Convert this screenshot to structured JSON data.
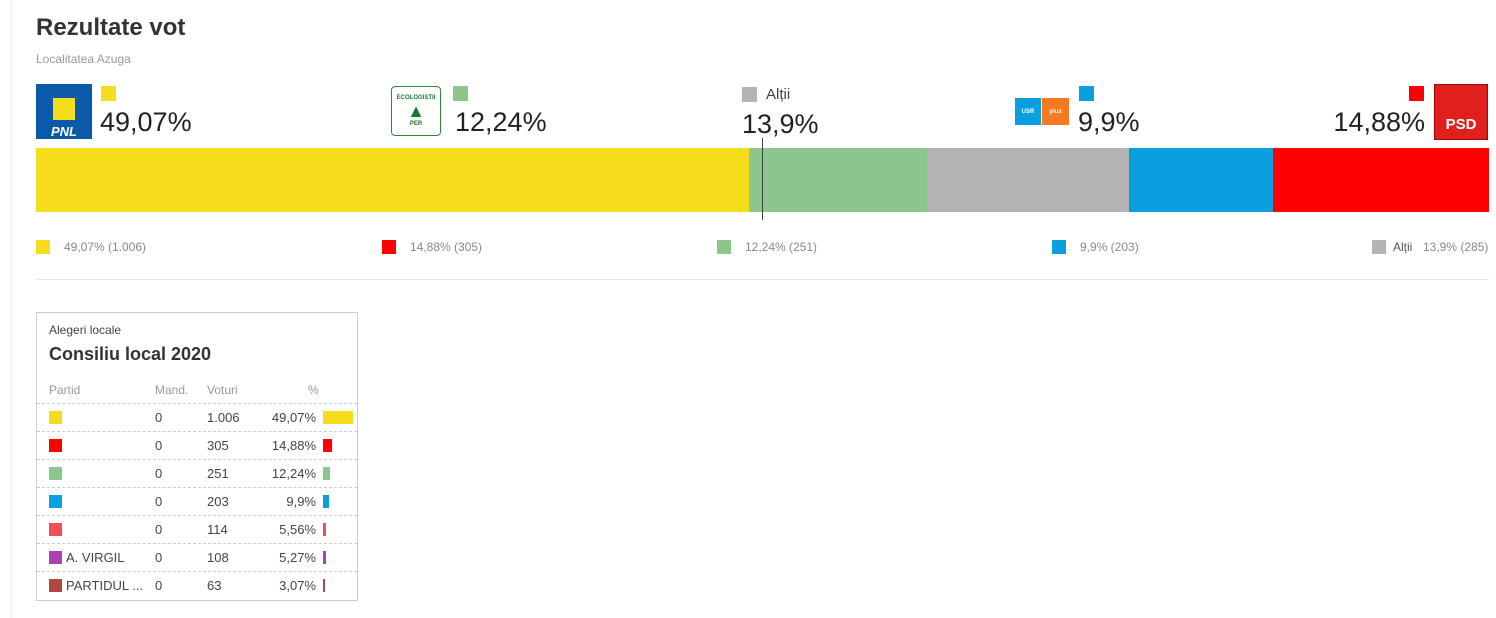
{
  "header": {
    "title": "Rezultate vot",
    "subtitle": "Localitatea Azuga"
  },
  "top": [
    {
      "logo": [
        "PNL"
      ],
      "color": "#f6dd1b",
      "label": "49,07%",
      "value": 49.07
    },
    {
      "logo": [
        "ECOLOGISTII",
        "PER"
      ],
      "color": "#8cc68c",
      "label": "12,24%",
      "value": 12.24
    },
    {
      "name": "Alții",
      "color": "#b4b4b4",
      "label": "13,9%",
      "value": 13.9
    },
    {
      "logo": [
        "USR",
        "plus"
      ],
      "color": "#0aa0e0",
      "label": "9,9%",
      "value": 9.9
    },
    {
      "logo": [
        "PSD"
      ],
      "color": "#ff0000",
      "label": "14,88%",
      "value": 14.88
    }
  ],
  "legend": [
    {
      "color": "#f6dd1b",
      "label": "49,07% (1.006)"
    },
    {
      "color": "#ff0000",
      "label": "14,88% (305)"
    },
    {
      "color": "#8cc68c",
      "label": "12,24% (251)"
    },
    {
      "color": "#0aa0e0",
      "label": "9,9% (203)"
    },
    {
      "color": "#b4b4b4",
      "name": "Alții",
      "label": "13,9% (285)"
    }
  ],
  "table": {
    "kicker": "Alegeri locale",
    "title": "Consiliu local 2020",
    "columns": [
      "Partid",
      "Mand.",
      "Voturi",
      "%"
    ],
    "rows": [
      {
        "color": "#f6dd1b",
        "name": "",
        "mand": "0",
        "votes": "1.006",
        "pct": "49,07%",
        "value": 49.07
      },
      {
        "color": "#ff0000",
        "name": "",
        "mand": "0",
        "votes": "305",
        "pct": "14,88%",
        "value": 14.88
      },
      {
        "color": "#8cc68c",
        "name": "",
        "mand": "0",
        "votes": "251",
        "pct": "12,24%",
        "value": 12.24
      },
      {
        "color": "#0aa0e0",
        "name": "",
        "mand": "0",
        "votes": "203",
        "pct": "9,9%",
        "value": 9.9
      },
      {
        "color": "#f05055",
        "name": "",
        "mand": "0",
        "votes": "114",
        "pct": "5,56%",
        "value": 5.56
      },
      {
        "color": "#b040b0",
        "name": "A. VIRGIL",
        "mand": "0",
        "votes": "108",
        "pct": "5,27%",
        "value": 5.27
      },
      {
        "color": "#b04840",
        "name": "PARTIDUL ...",
        "mand": "0",
        "votes": "63",
        "pct": "3,07%",
        "value": 3.07
      }
    ]
  }
}
